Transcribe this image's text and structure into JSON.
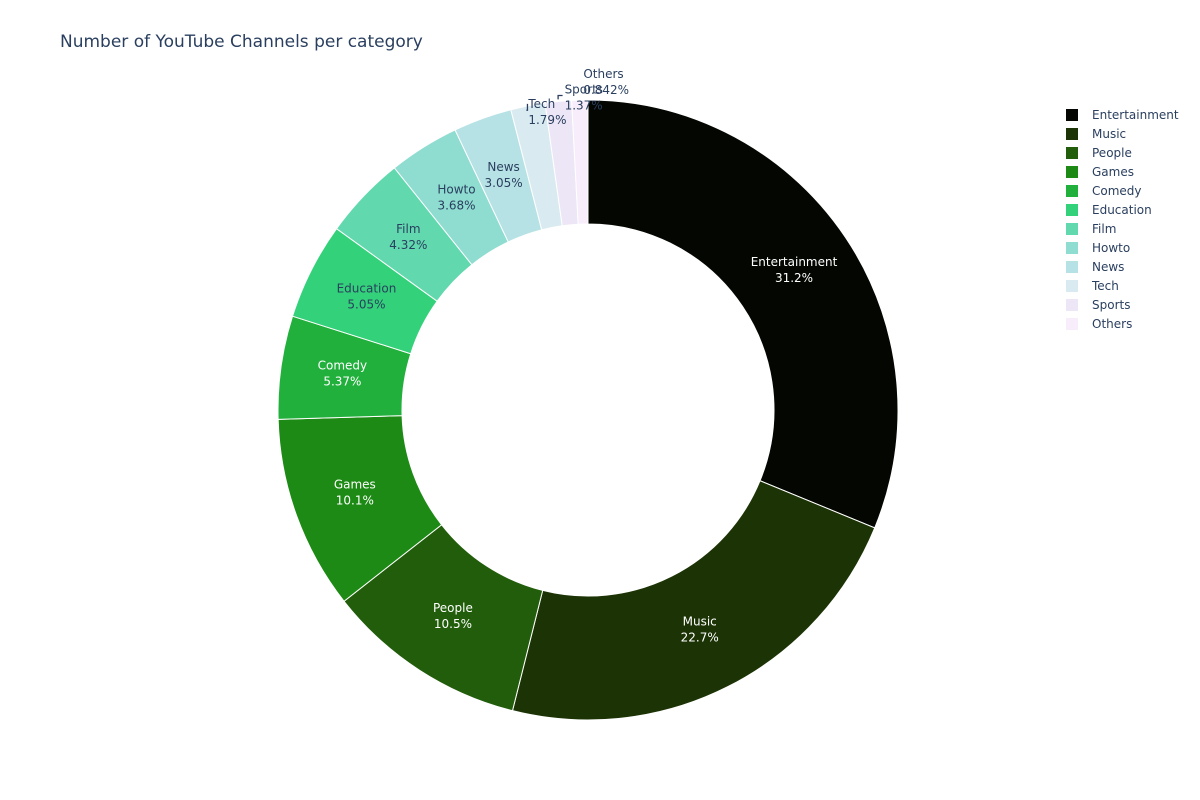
{
  "chart_data": {
    "type": "pie",
    "hole": true,
    "title": "Number of YouTube Channels per category",
    "legend_position": "top-right",
    "categories": [
      "Entertainment",
      "Music",
      "People",
      "Games",
      "Comedy",
      "Education",
      "Film",
      "Howto",
      "News",
      "Tech",
      "Sports",
      "Others"
    ],
    "percents": [
      31.2,
      22.7,
      10.5,
      10.1,
      5.37,
      5.05,
      4.32,
      3.68,
      3.05,
      1.79,
      1.37,
      0.842
    ],
    "percent_labels": [
      "31.2%",
      "22.7%",
      "10.5%",
      "10.1%",
      "5.37%",
      "5.05%",
      "4.32%",
      "3.68%",
      "3.05%",
      "1.79%",
      "1.37%",
      "0.842%"
    ],
    "colors": [
      "#030601",
      "#1b3305",
      "#215d0a",
      "#1c8a14",
      "#22b03d",
      "#33d27a",
      "#61d8ae",
      "#8fdcd0",
      "#b7e2e5",
      "#d9ebf1",
      "#ece6f6",
      "#f7edfb"
    ],
    "label_colors": [
      "#ffffff",
      "#ffffff",
      "#ffffff",
      "#ffffff",
      "#ffffff",
      "#2a3f5f",
      "#2a3f5f",
      "#2a3f5f",
      "#2a3f5f",
      "#2a3f5f",
      "#2a3f5f",
      "#2a3f5f"
    ],
    "outside_labels": [
      "Tech",
      "Sports",
      "Others"
    ]
  }
}
